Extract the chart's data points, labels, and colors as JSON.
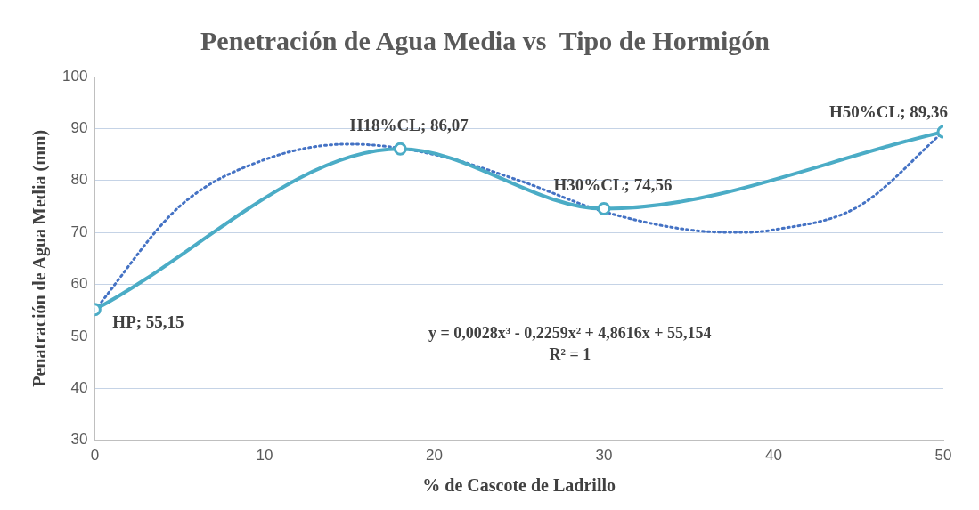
{
  "chart_data": {
    "type": "line",
    "title": "Penetración de Agua Media vs  Tipo de Hormigón",
    "xlabel": "% de Cascote de Ladrillo",
    "ylabel": "Penatración de Agua Media (mm)",
    "xlim": [
      0,
      50
    ],
    "xticks": [
      0,
      10,
      20,
      30,
      40,
      50
    ],
    "ylim": [
      30,
      100
    ],
    "yticks": [
      30,
      40,
      50,
      60,
      70,
      80,
      90,
      100
    ],
    "grid": "y",
    "legend": false,
    "series": [
      {
        "type": "line",
        "color": "#4bacc6",
        "x": [
          0,
          18,
          30,
          50
        ],
        "values": [
          55.15,
          86.07,
          74.56,
          89.36
        ],
        "marker": "circle",
        "line_style": "solid",
        "value_labels": [
          "HP; 55,15",
          "H18%CL; 86,07",
          "H30%CL; 74,56",
          "H50%CL; 89,36"
        ]
      },
      {
        "type": "line",
        "color": "#4472c4",
        "x": [
          0,
          5,
          10,
          15,
          20,
          25,
          30,
          35,
          38,
          40,
          45,
          50
        ],
        "values": [
          55,
          75,
          84,
          87,
          85,
          80,
          74,
          70.5,
          70,
          70.5,
          75,
          89.4
        ],
        "marker": "none",
        "line_style": "dotted"
      }
    ],
    "annotations": [
      "y = 0,0028x³ - 0,2259x² + 4,8616x + 55,154",
      "R² = 1"
    ]
  }
}
